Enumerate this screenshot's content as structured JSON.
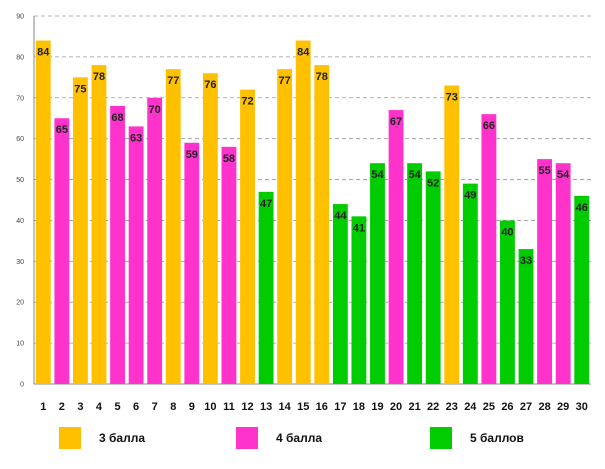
{
  "chart_data": {
    "type": "bar",
    "title": "",
    "xlabel": "",
    "ylabel": "",
    "ylim": [
      0,
      90
    ],
    "yticks": [
      0,
      10,
      20,
      30,
      40,
      50,
      60,
      70,
      80,
      90
    ],
    "grid": true,
    "categories": [
      "1",
      "2",
      "3",
      "4",
      "5",
      "6",
      "7",
      "8",
      "9",
      "10",
      "11",
      "12",
      "13",
      "14",
      "15",
      "16",
      "17",
      "18",
      "19",
      "20",
      "21",
      "22",
      "23",
      "24",
      "25",
      "26",
      "27",
      "28",
      "29",
      "30"
    ],
    "values": [
      84,
      65,
      75,
      78,
      68,
      63,
      70,
      77,
      59,
      76,
      58,
      72,
      47,
      77,
      84,
      78,
      44,
      41,
      54,
      67,
      54,
      52,
      73,
      49,
      66,
      40,
      33,
      55,
      54,
      46
    ],
    "groups": [
      "3",
      "4",
      "3",
      "3",
      "4",
      "4",
      "4",
      "3",
      "4",
      "3",
      "4",
      "3",
      "5",
      "3",
      "3",
      "3",
      "5",
      "5",
      "5",
      "4",
      "5",
      "5",
      "3",
      "5",
      "4",
      "5",
      "5",
      "4",
      "4",
      "5"
    ],
    "legend": [
      {
        "key": "3",
        "label": "3 балла",
        "color": "#FFC000"
      },
      {
        "key": "4",
        "label": "4 балла",
        "color": "#FF33CC"
      },
      {
        "key": "5",
        "label": "5 баллов",
        "color": "#00CC00"
      }
    ]
  }
}
